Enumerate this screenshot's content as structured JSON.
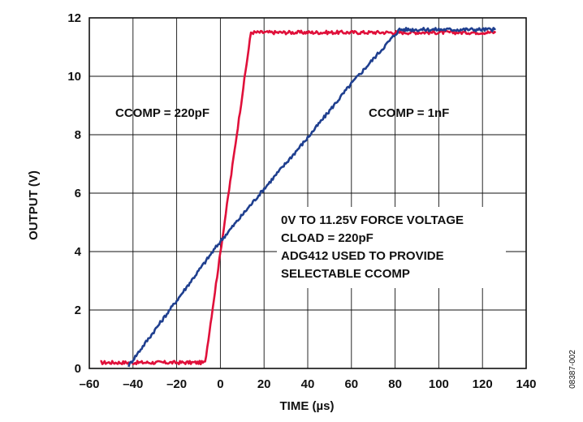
{
  "figure_id": "08387-002",
  "chart_data": {
    "type": "line",
    "xlabel": "TIME (µs)",
    "ylabel": "OUTPUT (V)",
    "xlim": [
      -60,
      140
    ],
    "ylim": [
      0,
      12
    ],
    "x_ticks": [
      -60,
      -40,
      -20,
      0,
      20,
      40,
      60,
      80,
      100,
      120,
      140
    ],
    "y_ticks": [
      0,
      2,
      4,
      6,
      8,
      10,
      12
    ],
    "x_tick_labels": [
      "–60",
      "–40",
      "–20",
      "0",
      "20",
      "40",
      "60",
      "80",
      "100",
      "120",
      "140"
    ],
    "y_tick_labels": [
      "0",
      "2",
      "4",
      "6",
      "8",
      "10",
      "12"
    ],
    "grid": true,
    "series": [
      {
        "name": "CCOMP = 220pF",
        "color": "#e0103a",
        "points": [
          [
            -55,
            0.2
          ],
          [
            -7,
            0.2
          ],
          [
            14,
            11.5
          ],
          [
            126,
            11.5
          ]
        ]
      },
      {
        "name": "CCOMP = 1nF",
        "color": "#1f3f8f",
        "points": [
          [
            -42,
            0.1
          ],
          [
            -40,
            0.3
          ],
          [
            0,
            4.35
          ],
          [
            20,
            6.15
          ],
          [
            40,
            7.9
          ],
          [
            60,
            9.75
          ],
          [
            82,
            11.6
          ],
          [
            126,
            11.6
          ]
        ]
      }
    ],
    "annotations": [
      "CCOMP = 220pF",
      "CCOMP = 1nF",
      "0V TO 11.25V FORCE VOLTAGE",
      "CLOAD = 220pF",
      "ADG412 USED TO PROVIDE",
      "SELECTABLE CCOMP"
    ]
  }
}
